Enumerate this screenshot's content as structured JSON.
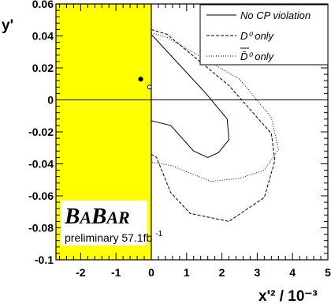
{
  "chart_data": {
    "type": "line",
    "title": "",
    "xlabel": "x'² / 10⁻³",
    "ylabel": "y'",
    "xlim": [
      -2.7,
      5.0
    ],
    "ylim": [
      -0.1,
      0.06
    ],
    "x_ticks": [
      -2,
      -1,
      0,
      1,
      2,
      3,
      4,
      5
    ],
    "y_ticks": [
      0.06,
      0.04,
      0.02,
      0,
      -0.02,
      -0.04,
      -0.06,
      -0.08,
      -0.1
    ],
    "y_tick_labels": [
      "0.06",
      "0.04",
      "0.02",
      "0",
      "-0.02",
      "-0.04",
      "-0.06",
      "-0.08",
      "-0.1"
    ],
    "excluded_region": {
      "x_from": -2.7,
      "x_to": 0,
      "color": "#ffff00"
    },
    "series": [
      {
        "name": "No CP violation",
        "style": "solid",
        "x": [
          0.0,
          1.55,
          2.15,
          2.2,
          1.9,
          1.6,
          1.2,
          0.55,
          0.0
        ],
        "y": [
          0.041,
          0.004,
          -0.012,
          -0.025,
          -0.033,
          -0.036,
          -0.032,
          -0.016,
          -0.013
        ]
      },
      {
        "name": "D⁰ only",
        "style": "dashed",
        "x": [
          0.0,
          0.45,
          2.2,
          3.4,
          3.5,
          3.2,
          2.2,
          1.1,
          0.55,
          0.15,
          0.0
        ],
        "y": [
          0.044,
          0.041,
          0.009,
          -0.021,
          -0.038,
          -0.061,
          -0.076,
          -0.071,
          -0.058,
          -0.036,
          -0.034
        ]
      },
      {
        "name": "D̄⁰ only",
        "style": "dotted",
        "x": [
          0.0,
          0.45,
          2.5,
          3.4,
          3.6,
          3.2,
          2.5,
          1.7,
          0.55,
          0.0
        ],
        "y": [
          0.042,
          0.039,
          0.013,
          -0.011,
          -0.031,
          -0.044,
          -0.049,
          -0.051,
          -0.041,
          -0.039
        ]
      }
    ],
    "points": [
      {
        "x": -0.3,
        "y": 0.013,
        "marker": "filled"
      },
      {
        "x": -0.05,
        "y": 0.008,
        "marker": "open"
      }
    ],
    "legend": {
      "placement": "top-right",
      "entries": [
        "No CP violation",
        "D⁰ only",
        "D̄⁰ only"
      ]
    },
    "stamp": {
      "experiment": "BABAR",
      "status": "preliminary 57.1fb",
      "luminosity_exponent": "-1"
    }
  }
}
